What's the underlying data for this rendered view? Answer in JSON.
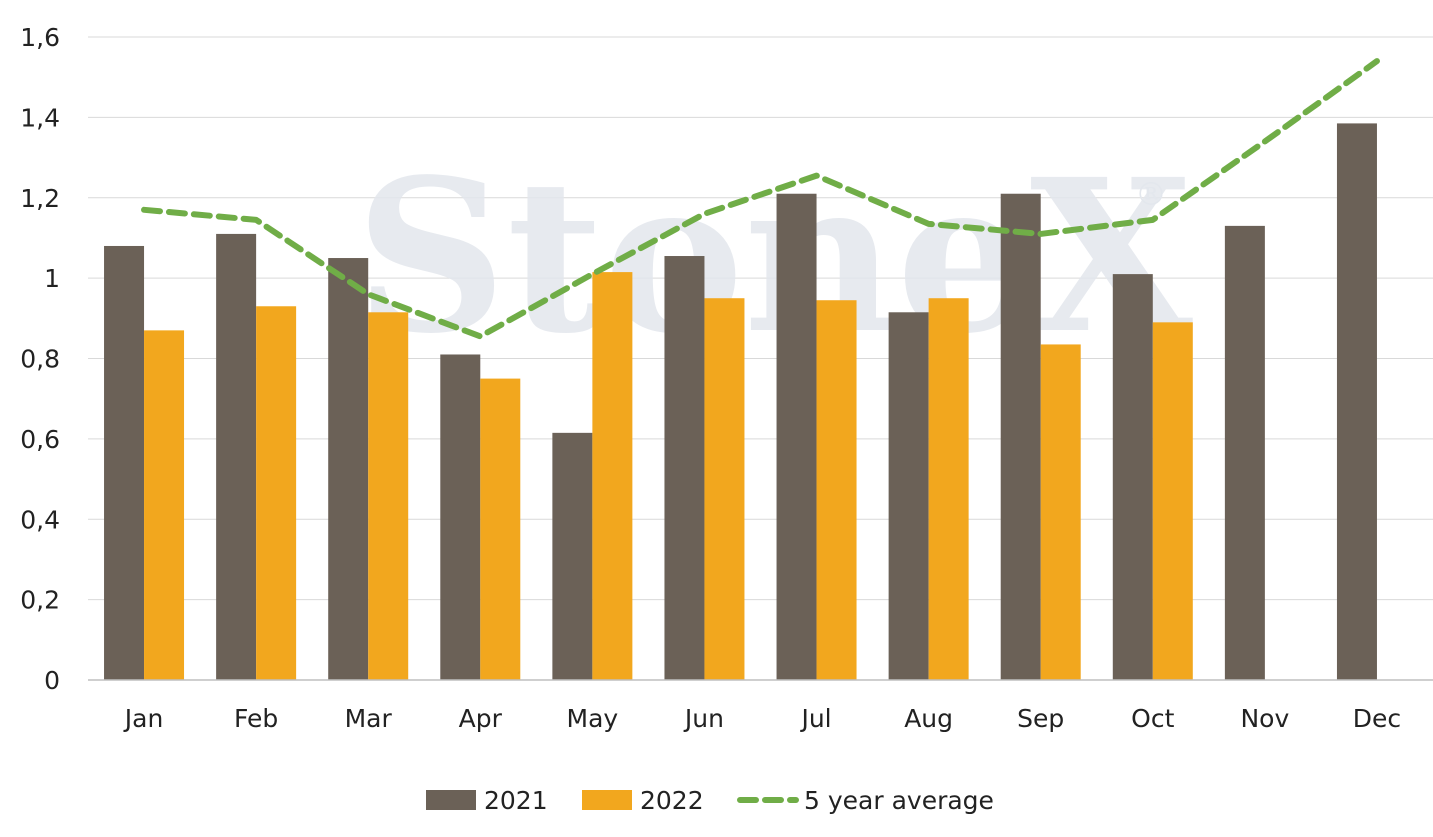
{
  "chart_data": {
    "type": "bar",
    "categories": [
      "Jan",
      "Feb",
      "Mar",
      "Apr",
      "May",
      "Jun",
      "Jul",
      "Aug",
      "Sep",
      "Oct",
      "Nov",
      "Dec"
    ],
    "series": [
      {
        "name": "2021",
        "type": "bar",
        "color": "#6b6157",
        "values": [
          1.08,
          1.11,
          1.05,
          0.81,
          0.615,
          1.055,
          1.21,
          0.915,
          1.21,
          1.01,
          1.13,
          1.385
        ]
      },
      {
        "name": "2022",
        "type": "bar",
        "color": "#f2a71e",
        "values": [
          0.87,
          0.93,
          0.915,
          0.75,
          1.015,
          0.95,
          0.945,
          0.95,
          0.835,
          0.89,
          null,
          null
        ]
      },
      {
        "name": "5 year average",
        "type": "line",
        "style": "dashed",
        "color": "#70ad47",
        "values": [
          1.17,
          1.145,
          0.96,
          0.855,
          1.01,
          1.16,
          1.255,
          1.135,
          1.11,
          1.145,
          1.34,
          1.54
        ]
      }
    ],
    "yticks": [
      "0",
      "0,2",
      "0,4",
      "0,6",
      "0,8",
      "1",
      "1,2",
      "1,4",
      "1,6"
    ],
    "ylim": [
      0,
      1.6
    ],
    "ystep": 0.2,
    "grid": true,
    "legend_position": "bottom",
    "title": "",
    "xlabel": "",
    "ylabel": ""
  },
  "watermark": {
    "brand": "StoneX",
    "mark": "®"
  }
}
